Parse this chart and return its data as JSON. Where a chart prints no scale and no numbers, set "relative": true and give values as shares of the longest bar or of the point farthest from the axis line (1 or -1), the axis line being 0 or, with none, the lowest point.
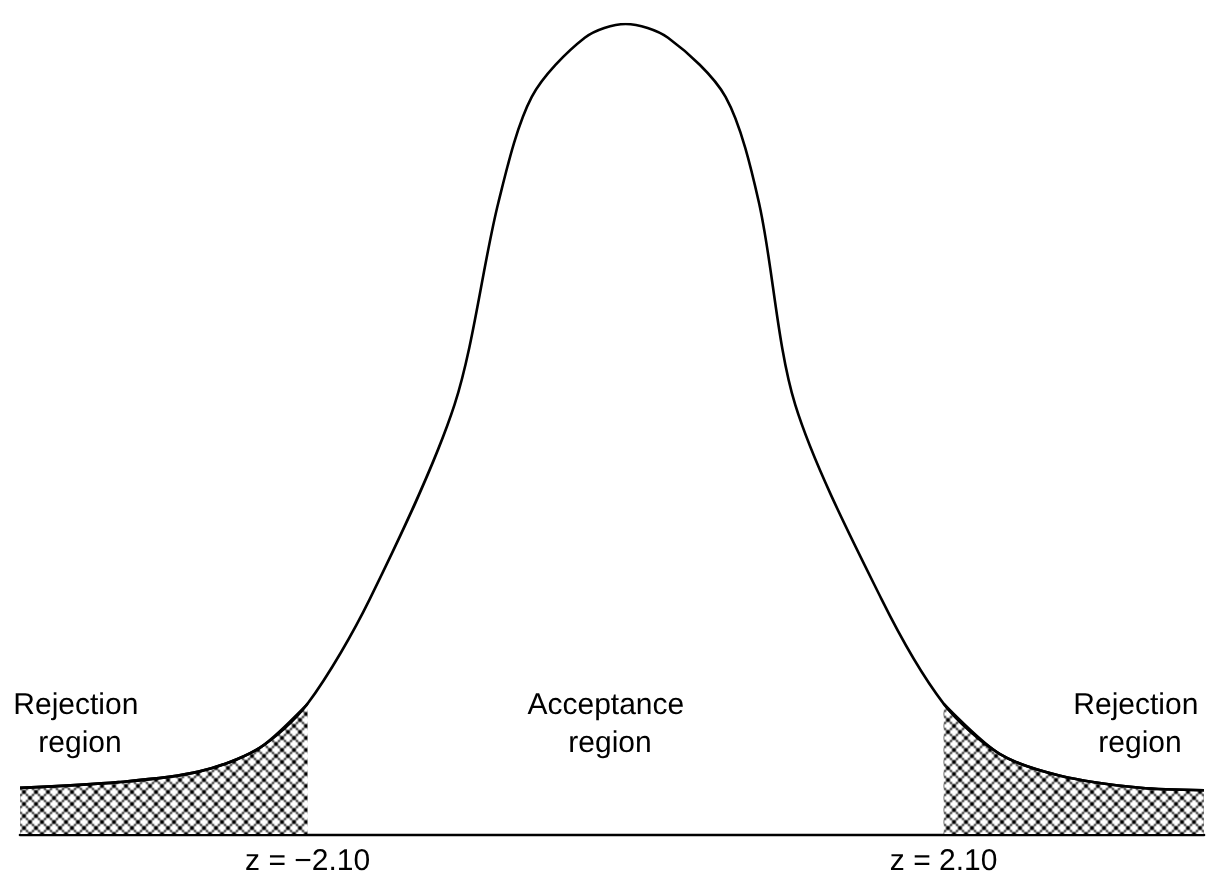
{
  "chart_data": {
    "type": "line",
    "relative": true,
    "grid": false,
    "marker": "none",
    "line_style": "solid",
    "xlim": [
      -4.0,
      3.82
    ],
    "xticks": [
      {
        "value": -2.1,
        "label": "z = −2.10"
      },
      {
        "value": 2.1,
        "label": "z = 2.10"
      }
    ],
    "series": [
      {
        "color": "#000000",
        "x": [
          -4.0,
          -3.35,
          -2.82,
          -2.42,
          -2.1,
          -1.69,
          -1.13,
          -0.84,
          -0.62,
          -0.27,
          0,
          0.28,
          0.66,
          0.88,
          1.12,
          1.69,
          2.1,
          2.47,
          2.87,
          3.4,
          3.82
        ],
        "values": [
          0.057,
          0.064,
          0.077,
          0.106,
          0.161,
          0.29,
          0.53,
          0.78,
          0.91,
          0.983,
          1,
          0.983,
          0.91,
          0.78,
          0.53,
          0.29,
          0.161,
          0.099,
          0.072,
          0.057,
          0.054
        ]
      },
      {
        "type": "area",
        "color": "#000000",
        "x": [
          -4.0,
          -3.35,
          -2.82,
          -2.42,
          -2.1
        ],
        "values": [
          0.057,
          0.064,
          0.077,
          0.106,
          0.161
        ]
      },
      {
        "type": "area",
        "color": "#000000",
        "x": [
          2.1,
          2.47,
          2.87,
          3.4,
          3.82
        ],
        "values": [
          0.161,
          0.099,
          0.072,
          0.057,
          0.054
        ]
      }
    ],
    "annotations": [
      "Rejection region",
      "Acceptance region",
      "Rejection region"
    ]
  }
}
